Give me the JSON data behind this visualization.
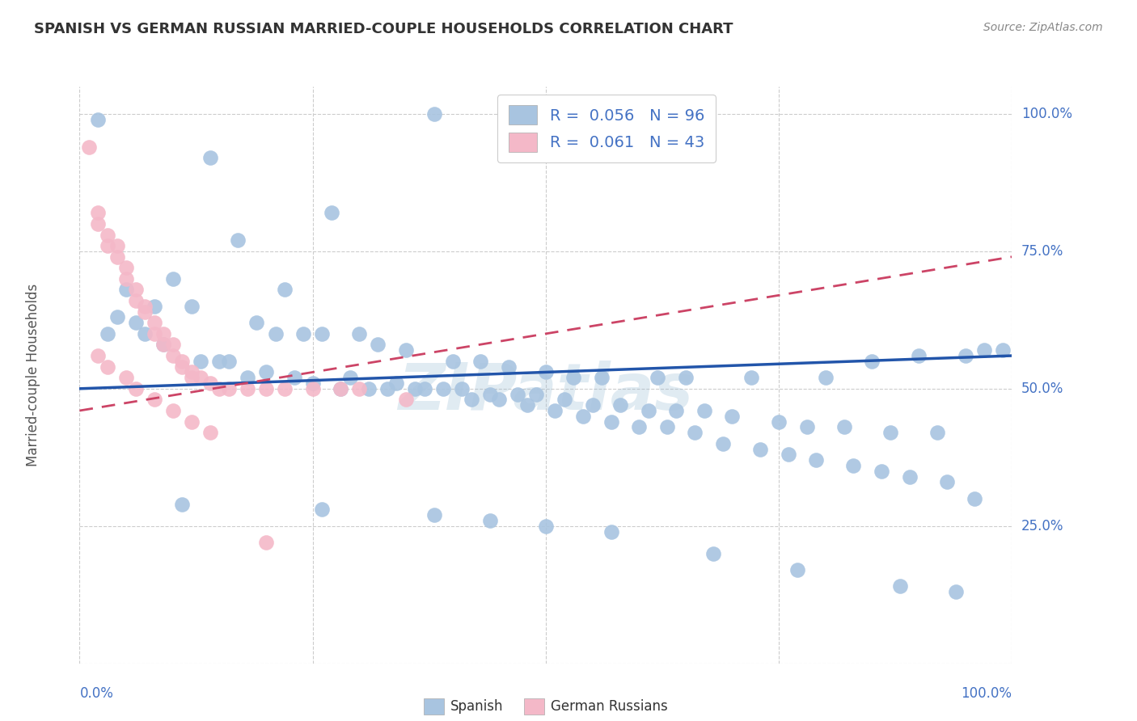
{
  "title": "SPANISH VS GERMAN RUSSIAN MARRIED-COUPLE HOUSEHOLDS CORRELATION CHART",
  "source": "Source: ZipAtlas.com",
  "ylabel": "Married-couple Households",
  "watermark": "ZIPatlas",
  "blue_R": "0.056",
  "blue_N": "96",
  "pink_R": "0.061",
  "pink_N": "43",
  "blue_color": "#a8c4e0",
  "pink_color": "#f4b8c8",
  "blue_line_color": "#2255aa",
  "pink_line_color": "#cc4466",
  "title_color": "#333333",
  "legend_text_color": "#4472c4",
  "background_color": "#ffffff",
  "grid_color": "#cccccc",
  "ytick_color": "#4472c4",
  "xtick_color": "#4472c4",
  "blue_x": [
    0.38,
    0.02,
    0.14,
    0.27,
    0.17,
    0.1,
    0.22,
    0.05,
    0.08,
    0.12,
    0.04,
    0.06,
    0.19,
    0.21,
    0.24,
    0.26,
    0.3,
    0.32,
    0.35,
    0.4,
    0.43,
    0.46,
    0.5,
    0.53,
    0.56,
    0.62,
    0.65,
    0.72,
    0.8,
    0.85,
    0.9,
    0.95,
    0.99,
    0.03,
    0.07,
    0.09,
    0.13,
    0.16,
    0.2,
    0.23,
    0.25,
    0.28,
    0.31,
    0.33,
    0.36,
    0.39,
    0.41,
    0.44,
    0.47,
    0.49,
    0.52,
    0.55,
    0.58,
    0.61,
    0.64,
    0.67,
    0.7,
    0.75,
    0.78,
    0.82,
    0.87,
    0.92,
    0.97,
    0.15,
    0.18,
    0.29,
    0.34,
    0.37,
    0.42,
    0.45,
    0.48,
    0.51,
    0.54,
    0.57,
    0.6,
    0.63,
    0.66,
    0.69,
    0.73,
    0.76,
    0.79,
    0.83,
    0.86,
    0.89,
    0.93,
    0.96,
    0.11,
    0.26,
    0.38,
    0.44,
    0.5,
    0.57,
    0.68,
    0.77,
    0.88,
    0.94
  ],
  "blue_y": [
    1.0,
    0.99,
    0.92,
    0.82,
    0.77,
    0.7,
    0.68,
    0.68,
    0.65,
    0.65,
    0.63,
    0.62,
    0.62,
    0.6,
    0.6,
    0.6,
    0.6,
    0.58,
    0.57,
    0.55,
    0.55,
    0.54,
    0.53,
    0.52,
    0.52,
    0.52,
    0.52,
    0.52,
    0.52,
    0.55,
    0.56,
    0.56,
    0.57,
    0.6,
    0.6,
    0.58,
    0.55,
    0.55,
    0.53,
    0.52,
    0.51,
    0.5,
    0.5,
    0.5,
    0.5,
    0.5,
    0.5,
    0.49,
    0.49,
    0.49,
    0.48,
    0.47,
    0.47,
    0.46,
    0.46,
    0.46,
    0.45,
    0.44,
    0.43,
    0.43,
    0.42,
    0.42,
    0.57,
    0.55,
    0.52,
    0.52,
    0.51,
    0.5,
    0.48,
    0.48,
    0.47,
    0.46,
    0.45,
    0.44,
    0.43,
    0.43,
    0.42,
    0.4,
    0.39,
    0.38,
    0.37,
    0.36,
    0.35,
    0.34,
    0.33,
    0.3,
    0.29,
    0.28,
    0.27,
    0.26,
    0.25,
    0.24,
    0.2,
    0.17,
    0.14,
    0.13
  ],
  "pink_x": [
    0.01,
    0.02,
    0.02,
    0.03,
    0.03,
    0.04,
    0.04,
    0.05,
    0.05,
    0.06,
    0.06,
    0.07,
    0.07,
    0.08,
    0.08,
    0.09,
    0.09,
    0.1,
    0.1,
    0.11,
    0.11,
    0.12,
    0.12,
    0.13,
    0.14,
    0.15,
    0.16,
    0.18,
    0.2,
    0.22,
    0.25,
    0.28,
    0.3,
    0.02,
    0.03,
    0.05,
    0.06,
    0.08,
    0.1,
    0.12,
    0.14,
    0.2,
    0.35
  ],
  "pink_y": [
    0.94,
    0.82,
    0.8,
    0.78,
    0.76,
    0.76,
    0.74,
    0.72,
    0.7,
    0.68,
    0.66,
    0.65,
    0.64,
    0.62,
    0.6,
    0.6,
    0.58,
    0.58,
    0.56,
    0.55,
    0.54,
    0.53,
    0.52,
    0.52,
    0.51,
    0.5,
    0.5,
    0.5,
    0.5,
    0.5,
    0.5,
    0.5,
    0.5,
    0.56,
    0.54,
    0.52,
    0.5,
    0.48,
    0.46,
    0.44,
    0.42,
    0.22,
    0.48
  ]
}
